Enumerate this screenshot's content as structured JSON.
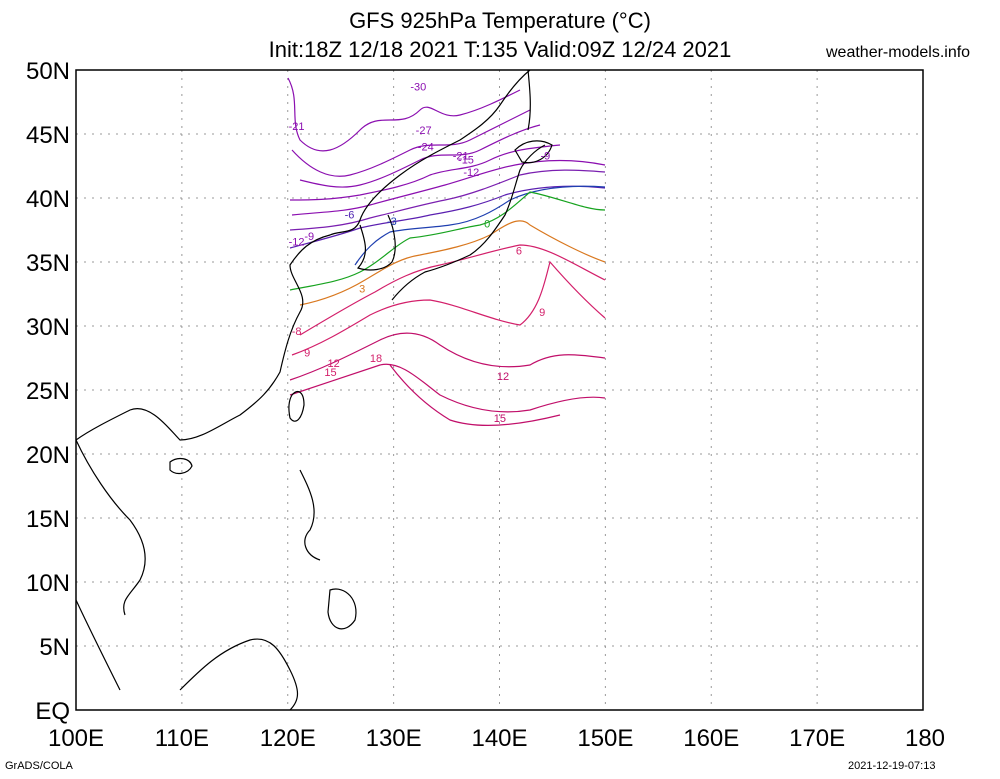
{
  "title": {
    "line1": "GFS 925hPa Temperature (°C)",
    "line2": "Init:18Z 12/18 2021 T:135 Valid:09Z 12/24 2021",
    "site": "weather-models.info"
  },
  "footer": {
    "left": "GrADS/COLA",
    "right": "2021-12-19-07:13"
  },
  "axes": {
    "lat_labels": [
      "50N",
      "45N",
      "40N",
      "35N",
      "30N",
      "25N",
      "20N",
      "15N",
      "10N",
      "5N",
      "EQ"
    ],
    "lon_labels": [
      "100E",
      "110E",
      "120E",
      "130E",
      "140E",
      "150E",
      "160E",
      "170E",
      "180"
    ],
    "lat_range": [
      0,
      50
    ],
    "lon_range": [
      100,
      180
    ],
    "grid": "dotted"
  },
  "contour_labels": [
    {
      "text": "-30",
      "lon": 112.5,
      "lat": 48.4,
      "color": "#8b0fb0"
    },
    {
      "text": "-27",
      "lon": 113.0,
      "lat": 45.0,
      "color": "#8b0fb0"
    },
    {
      "text": "-24",
      "lon": 113.2,
      "lat": 43.7,
      "color": "#8b0fb0"
    },
    {
      "text": "-21",
      "lon": 101.0,
      "lat": 45.3,
      "color": "#8b0fb0"
    },
    {
      "text": "-21",
      "lon": 116.5,
      "lat": 43.0,
      "color": "#8b0fb0"
    },
    {
      "text": "-15",
      "lon": 117.0,
      "lat": 42.7,
      "color": "#8b0fb0"
    },
    {
      "text": "-12",
      "lon": 117.5,
      "lat": 41.7,
      "color": "#8b0fb0"
    },
    {
      "text": "-9",
      "lon": 102.2,
      "lat": 36.7,
      "color": "#8b0fb0"
    },
    {
      "text": "-12",
      "lon": 101.0,
      "lat": 36.3,
      "color": "#8b0fb0"
    },
    {
      "text": "-9",
      "lon": 124.5,
      "lat": 43.0,
      "color": "#8b0fb0"
    },
    {
      "text": "-6",
      "lon": 106.0,
      "lat": 38.4,
      "color": "#4a1fb0"
    },
    {
      "text": "-3",
      "lon": 110.0,
      "lat": 37.9,
      "color": "#1f3fb0"
    },
    {
      "text": "0",
      "lon": 119.0,
      "lat": 37.7,
      "color": "#17a31f"
    },
    {
      "text": "3",
      "lon": 107.2,
      "lat": 32.6,
      "color": "#d9781f"
    },
    {
      "text": "6",
      "lon": 122.0,
      "lat": 35.6,
      "color": "#d31f6a"
    },
    {
      "text": "9",
      "lon": 102.0,
      "lat": 27.6,
      "color": "#d31f6a"
    },
    {
      "text": "9",
      "lon": 124.2,
      "lat": 30.8,
      "color": "#d31f6a"
    },
    {
      "text": "12",
      "lon": 104.5,
      "lat": 26.8,
      "color": "#d31f6a"
    },
    {
      "text": "12",
      "lon": 120.5,
      "lat": 25.8,
      "color": "#c10f6a"
    },
    {
      "text": "15",
      "lon": 104.2,
      "lat": 26.1,
      "color": "#d31f6a"
    },
    {
      "text": "15",
      "lon": 120.2,
      "lat": 22.5,
      "color": "#c10f6a"
    },
    {
      "text": "18",
      "lon": 108.5,
      "lat": 27.2,
      "color": "#d31f6a"
    },
    {
      "text": "-8",
      "lon": 101.0,
      "lat": 29.3,
      "color": "#d31f6a"
    }
  ]
}
